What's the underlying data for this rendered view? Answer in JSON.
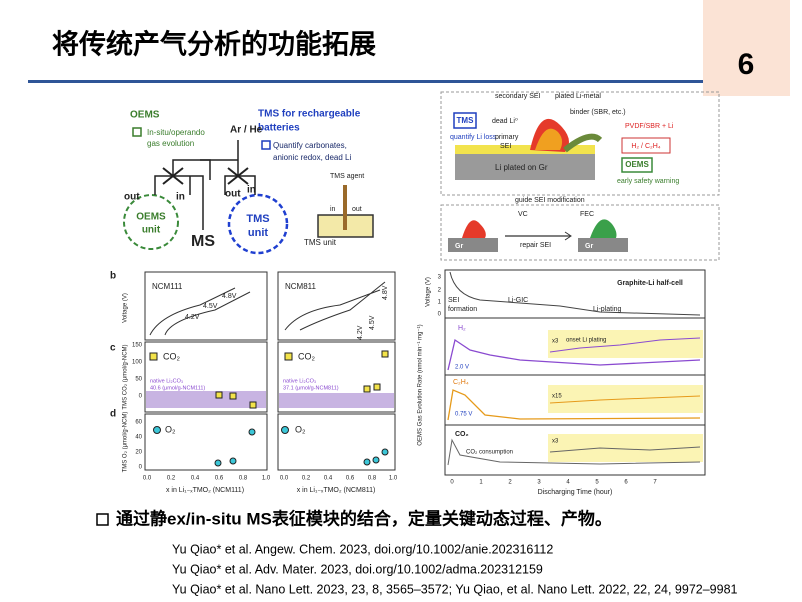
{
  "header": {
    "title": "将传统产气分析的功能拓展",
    "page_number": "6"
  },
  "figure_a": {
    "labels": [
      "OEMS",
      "In-situ/operando",
      "gas evolution",
      "TMS for rechargeable",
      "batteries",
      "Quantify carbonates,",
      "anionic redox, dead Li",
      "Ar / He",
      "out",
      "in",
      "out",
      "in",
      "OEMS",
      "unit",
      "MS",
      "TMS",
      "unit",
      "TMS agent",
      "in",
      "out",
      "TMS unit"
    ]
  },
  "figure_b": {
    "labels": [
      "secondary SEI",
      "plated Li-metal",
      "binder (SBR, etc.)",
      "dead Li⁰",
      "TMS",
      "quantify Li loss",
      "primary",
      "SEI",
      "PVDF/SBR + Li",
      "H₂ / C₂H₄",
      "OEMS",
      "early safety warning",
      "Li plated on Gr",
      "guide SEI modification",
      "VC",
      "FEC",
      "Gr",
      "repair SEI",
      "Gr"
    ]
  },
  "figure_c": {
    "labels": [
      "b",
      "NCM111",
      "NCM811",
      "4.8V",
      "4.5V",
      "4.2V",
      "4.8V",
      "4.5V",
      "4.2V",
      "Voltage (V)",
      "c",
      "CO₂",
      "CO₂",
      "native Li₂CO₃",
      "40.6 (μmol/g-NCM111)",
      "native Li₂CO₃",
      "37.1 (μmol/g-NCM811)",
      "TMS CO₂ (μmol/g-NCM)",
      "d",
      "O₂",
      "O₂",
      "TMS O₂ (μmol/g-NCM)",
      "x in Li₁₋ₓTMO₂ (NCM111)",
      "x in Li₁₋ₓTMO₂ (NCM811)",
      "150",
      "100",
      "50",
      "0",
      "60",
      "40",
      "20",
      "0",
      "0.0",
      "0.2",
      "0.4",
      "0.6",
      "0.8",
      "1.0",
      "0.0",
      "0.2",
      "0.4",
      "0.6",
      "0.8",
      "1.0"
    ]
  },
  "figure_d": {
    "labels": [
      "Graphite-Li half-cell",
      "Voltage (V)",
      "SEI",
      "formation",
      "Li-GIC",
      "Li-plating",
      "H₂",
      "x3",
      "onset Li plating",
      "2.0 V",
      "C₂H₄",
      "x15",
      "0.75 V",
      "CO₂",
      "x3",
      "CO₂ consumption",
      "OEMS Gas Evolution Rate (nmol min⁻¹ mg⁻¹)",
      "Discharging Time (hour)",
      "0",
      "1",
      "2",
      "3",
      "4",
      "5",
      "6",
      "7",
      "3",
      "2",
      "1",
      "0"
    ]
  },
  "bullet": "通过静ex/in-situ MS表征模块的结合，定量关键动态过程、产物。",
  "references": [
    "Yu Qiao* et al. Angew. Chem. 2023, doi.org/10.1002/anie.202316112",
    "Yu Qiao* et al. Adv. Mater. 2023, doi.org/10.1002/adma.202312159",
    "Yu Qiao* et al. Nano Lett. 2023, 23, 8, 3565–3572;   Yu Qiao, et al. Nano Lett. 2022, 22, 24, 9972–9981"
  ]
}
